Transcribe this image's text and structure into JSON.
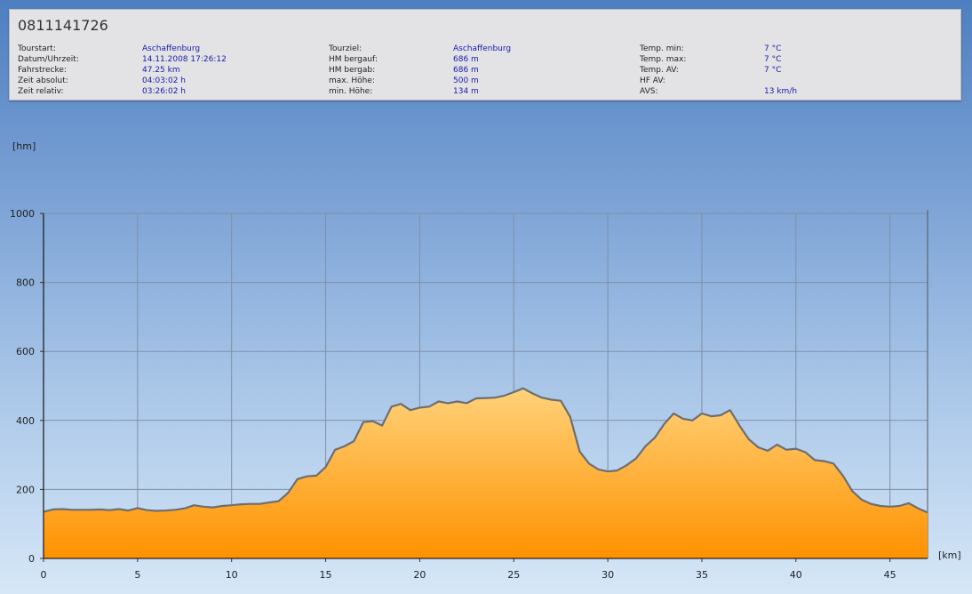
{
  "header": {
    "title": "0811141726",
    "rows": [
      {
        "label": "Tourstart:",
        "value": "Aschaffenburg"
      },
      {
        "label": "Datum/Uhrzeit:",
        "value": "14.11.2008 17:26:12"
      },
      {
        "label": "Fahrstrecke:",
        "value": "47.25 km"
      },
      {
        "label": "Zeit absolut:",
        "value": "04:03:02 h"
      },
      {
        "label": "Zeit relativ:",
        "value": "03:26:02 h"
      }
    ],
    "rows2": [
      {
        "label": "Tourziel:",
        "value": "Aschaffenburg"
      },
      {
        "label": "HM bergauf:",
        "value": "686 m"
      },
      {
        "label": "HM bergab:",
        "value": "686 m"
      },
      {
        "label": "max. Höhe:",
        "value": "500 m"
      },
      {
        "label": "min. Höhe:",
        "value": "134 m"
      }
    ],
    "rows3": [
      {
        "label": "Temp. min:",
        "value": "7 °C"
      },
      {
        "label": "Temp. max:",
        "value": "7 °C"
      },
      {
        "label": "Temp. AV:",
        "value": "7 °C"
      },
      {
        "label": "HF AV:",
        "value": ""
      },
      {
        "label": "AVS:",
        "value": "13 km/h"
      }
    ]
  },
  "chart_data": {
    "type": "area",
    "xlabel": "[km]",
    "ylabel": "[hm]",
    "xlim": [
      0,
      47
    ],
    "ylim": [
      0,
      1000
    ],
    "xticks": [
      0,
      5,
      10,
      15,
      20,
      25,
      30,
      35,
      40,
      45
    ],
    "yticks": [
      0,
      200,
      400,
      600,
      800,
      1000
    ],
    "grid": true,
    "series": [
      {
        "x": [
          0,
          0.5,
          1,
          1.5,
          2,
          2.5,
          3,
          3.5,
          4,
          4.5,
          5,
          5.5,
          6,
          6.5,
          7,
          7.5,
          8,
          8.5,
          9,
          9.5,
          10,
          10.5,
          11,
          11.5,
          12,
          12.5,
          13,
          13.5,
          14,
          14.5,
          15,
          15.5,
          16,
          16.5,
          17,
          17.5,
          18,
          18.5,
          19,
          19.5,
          20,
          20.5,
          21,
          21.5,
          22,
          22.5,
          23,
          23.5,
          24,
          24.5,
          25,
          25.5,
          26,
          26.5,
          27,
          27.5,
          28,
          28.5,
          29,
          29.5,
          30,
          30.5,
          31,
          31.5,
          32,
          32.5,
          33,
          33.5,
          34,
          34.5,
          35,
          35.5,
          36,
          36.5,
          37,
          37.5,
          38,
          38.5,
          39,
          39.5,
          40,
          40.5,
          41,
          41.5,
          42,
          42.5,
          43,
          43.5,
          44,
          44.5,
          45,
          45.5,
          46,
          46.5,
          47
        ],
        "y": [
          135,
          142,
          143,
          141,
          141,
          141,
          142,
          140,
          143,
          139,
          146,
          140,
          138,
          139,
          141,
          145,
          154,
          150,
          148,
          152,
          154,
          157,
          158,
          158,
          162,
          166,
          190,
          230,
          238,
          240,
          265,
          315,
          325,
          340,
          395,
          398,
          385,
          440,
          448,
          430,
          437,
          440,
          455,
          450,
          455,
          450,
          464,
          465,
          466,
          472,
          482,
          493,
          478,
          466,
          460,
          457,
          410,
          310,
          275,
          258,
          252,
          255,
          270,
          290,
          325,
          350,
          390,
          420,
          405,
          400,
          420,
          412,
          415,
          430,
          385,
          345,
          322,
          312,
          330,
          315,
          318,
          308,
          285,
          282,
          275,
          240,
          195,
          170,
          158,
          152,
          150,
          152,
          160,
          145,
          133
        ]
      }
    ]
  }
}
